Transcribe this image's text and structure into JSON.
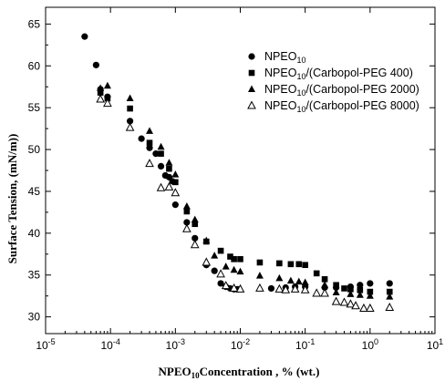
{
  "chart_data": {
    "type": "scatter",
    "xscale": "log",
    "xlim": [
      1e-05,
      10
    ],
    "ylim": [
      28,
      67
    ],
    "grid": false,
    "legend_position": "top-right",
    "xlabel": {
      "main": "NPEO",
      "sub": "10",
      "rest": "Concentration , % (wt.)"
    },
    "ylabel": "Surface Tension, (mN/m))",
    "x_ticks": [
      {
        "value": 1e-05,
        "base": "10",
        "exp": "-5"
      },
      {
        "value": 0.0001,
        "base": "10",
        "exp": "-4"
      },
      {
        "value": 0.001,
        "base": "10",
        "exp": "-3"
      },
      {
        "value": 0.01,
        "base": "10",
        "exp": "-2"
      },
      {
        "value": 0.1,
        "base": "10",
        "exp": "-1"
      },
      {
        "value": 1,
        "base": "10",
        "exp": "0"
      },
      {
        "value": 10,
        "base": "10",
        "exp": "1"
      }
    ],
    "y_ticks": [
      30,
      35,
      40,
      45,
      50,
      55,
      60,
      65
    ],
    "series": [
      {
        "name_main": "NPEO",
        "name_sub": "10",
        "name_rest": "",
        "marker": "circle",
        "points": [
          [
            4e-05,
            63.5
          ],
          [
            6e-05,
            60.1
          ],
          [
            7e-05,
            57.2
          ],
          [
            9e-05,
            56.3
          ],
          [
            0.0002,
            53.4
          ],
          [
            0.0003,
            51.3
          ],
          [
            0.0004,
            50.2
          ],
          [
            0.0005,
            49.5
          ],
          [
            0.0006,
            48.0
          ],
          [
            0.0007,
            46.9
          ],
          [
            0.0008,
            46.7
          ],
          [
            0.0009,
            46.2
          ],
          [
            0.001,
            43.4
          ],
          [
            0.0015,
            41.3
          ],
          [
            0.002,
            39.4
          ],
          [
            0.003,
            36.2
          ],
          [
            0.004,
            35.5
          ],
          [
            0.005,
            34.0
          ],
          [
            0.006,
            33.6
          ],
          [
            0.007,
            33.4
          ],
          [
            0.008,
            33.3
          ],
          [
            0.009,
            33.3
          ],
          [
            0.03,
            33.4
          ],
          [
            0.05,
            33.5
          ],
          [
            0.07,
            33.6
          ],
          [
            0.1,
            33.6
          ],
          [
            0.2,
            33.5
          ],
          [
            0.3,
            33.5
          ],
          [
            0.5,
            33.6
          ],
          [
            0.7,
            33.8
          ],
          [
            1.0,
            34.0
          ],
          [
            2.0,
            34.0
          ]
        ]
      },
      {
        "name_main": "NPEO",
        "name_sub": "10",
        "name_rest": "/(Carbopol-PEG 400)",
        "marker": "square",
        "points": [
          [
            7e-05,
            56.8
          ],
          [
            9e-05,
            56.1
          ],
          [
            0.0002,
            54.9
          ],
          [
            0.0004,
            50.8
          ],
          [
            0.0006,
            49.5
          ],
          [
            0.0008,
            47.7
          ],
          [
            0.001,
            46.1
          ],
          [
            0.0015,
            42.6
          ],
          [
            0.002,
            41.1
          ],
          [
            0.003,
            39.0
          ],
          [
            0.005,
            37.9
          ],
          [
            0.007,
            37.2
          ],
          [
            0.008,
            36.9
          ],
          [
            0.01,
            36.9
          ],
          [
            0.02,
            36.5
          ],
          [
            0.04,
            36.4
          ],
          [
            0.06,
            36.3
          ],
          [
            0.08,
            36.3
          ],
          [
            0.1,
            36.2
          ],
          [
            0.15,
            35.2
          ],
          [
            0.2,
            34.5
          ],
          [
            0.3,
            33.8
          ],
          [
            0.4,
            33.4
          ],
          [
            0.5,
            33.3
          ],
          [
            0.7,
            33.2
          ],
          [
            1.0,
            33.0
          ],
          [
            2.0,
            33.0
          ]
        ]
      },
      {
        "name_main": "NPEO",
        "name_sub": "10",
        "name_rest": "/(Carbopol-PEG 2000)",
        "marker": "triangle",
        "points": [
          [
            7e-05,
            57.3
          ],
          [
            9e-05,
            57.6
          ],
          [
            0.0002,
            56.1
          ],
          [
            0.0004,
            52.2
          ],
          [
            0.0006,
            50.3
          ],
          [
            0.0008,
            48.4
          ],
          [
            0.001,
            47.0
          ],
          [
            0.0015,
            43.2
          ],
          [
            0.002,
            41.6
          ],
          [
            0.003,
            39.1
          ],
          [
            0.004,
            37.3
          ],
          [
            0.006,
            36.0
          ],
          [
            0.008,
            35.6
          ],
          [
            0.01,
            35.4
          ],
          [
            0.02,
            34.9
          ],
          [
            0.04,
            34.6
          ],
          [
            0.06,
            34.3
          ],
          [
            0.08,
            34.2
          ],
          [
            0.1,
            34.1
          ],
          [
            0.2,
            33.8
          ],
          [
            0.3,
            32.9
          ],
          [
            0.5,
            32.7
          ],
          [
            0.7,
            32.6
          ],
          [
            1.0,
            32.5
          ],
          [
            2.0,
            32.4
          ]
        ]
      },
      {
        "name_main": "NPEO",
        "name_sub": "10",
        "name_rest": "/(Carbopol-PEG 8000)",
        "marker": "open-triangle",
        "points": [
          [
            7e-05,
            56.0
          ],
          [
            9e-05,
            55.5
          ],
          [
            0.0002,
            52.6
          ],
          [
            0.0004,
            48.3
          ],
          [
            0.0006,
            45.4
          ],
          [
            0.0008,
            45.5
          ],
          [
            0.001,
            44.8
          ],
          [
            0.0015,
            40.5
          ],
          [
            0.002,
            38.6
          ],
          [
            0.003,
            36.5
          ],
          [
            0.005,
            35.1
          ],
          [
            0.006,
            33.7
          ],
          [
            0.008,
            33.4
          ],
          [
            0.01,
            33.3
          ],
          [
            0.02,
            33.4
          ],
          [
            0.04,
            33.3
          ],
          [
            0.05,
            33.2
          ],
          [
            0.07,
            33.3
          ],
          [
            0.1,
            33.2
          ],
          [
            0.15,
            32.8
          ],
          [
            0.2,
            32.8
          ],
          [
            0.3,
            31.8
          ],
          [
            0.4,
            31.7
          ],
          [
            0.5,
            31.5
          ],
          [
            0.6,
            31.3
          ],
          [
            0.8,
            31.0
          ],
          [
            1.0,
            31.0
          ],
          [
            2.0,
            31.1
          ]
        ]
      }
    ]
  }
}
